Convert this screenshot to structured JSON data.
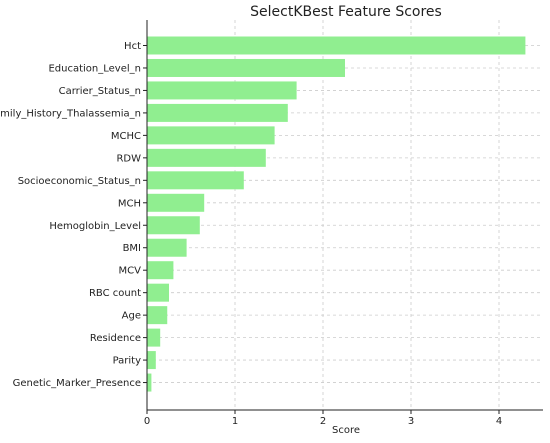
{
  "chart_data": {
    "type": "bar",
    "orientation": "horizontal",
    "title": "SelectKBest Feature Scores",
    "xlabel": "Score",
    "ylabel": "",
    "xlim": [
      0,
      4.5
    ],
    "xticks": [
      0,
      1,
      2,
      3,
      4
    ],
    "grid": true,
    "bar_color": "#90ee90",
    "categories": [
      "Hct",
      "Education_Level_n",
      "Carrier_Status_n",
      "Family_History_Thalassemia_n",
      "MCHC",
      "RDW",
      "Socioeconomic_Status_n",
      "MCH",
      "Hemoglobin_Level",
      "BMI",
      "MCV",
      "RBC count",
      "Age",
      "Residence",
      "Parity",
      "Genetic_Marker_Presence"
    ],
    "values": [
      4.3,
      2.25,
      1.7,
      1.6,
      1.45,
      1.35,
      1.1,
      0.65,
      0.6,
      0.45,
      0.3,
      0.25,
      0.23,
      0.15,
      0.1,
      0.05
    ]
  }
}
